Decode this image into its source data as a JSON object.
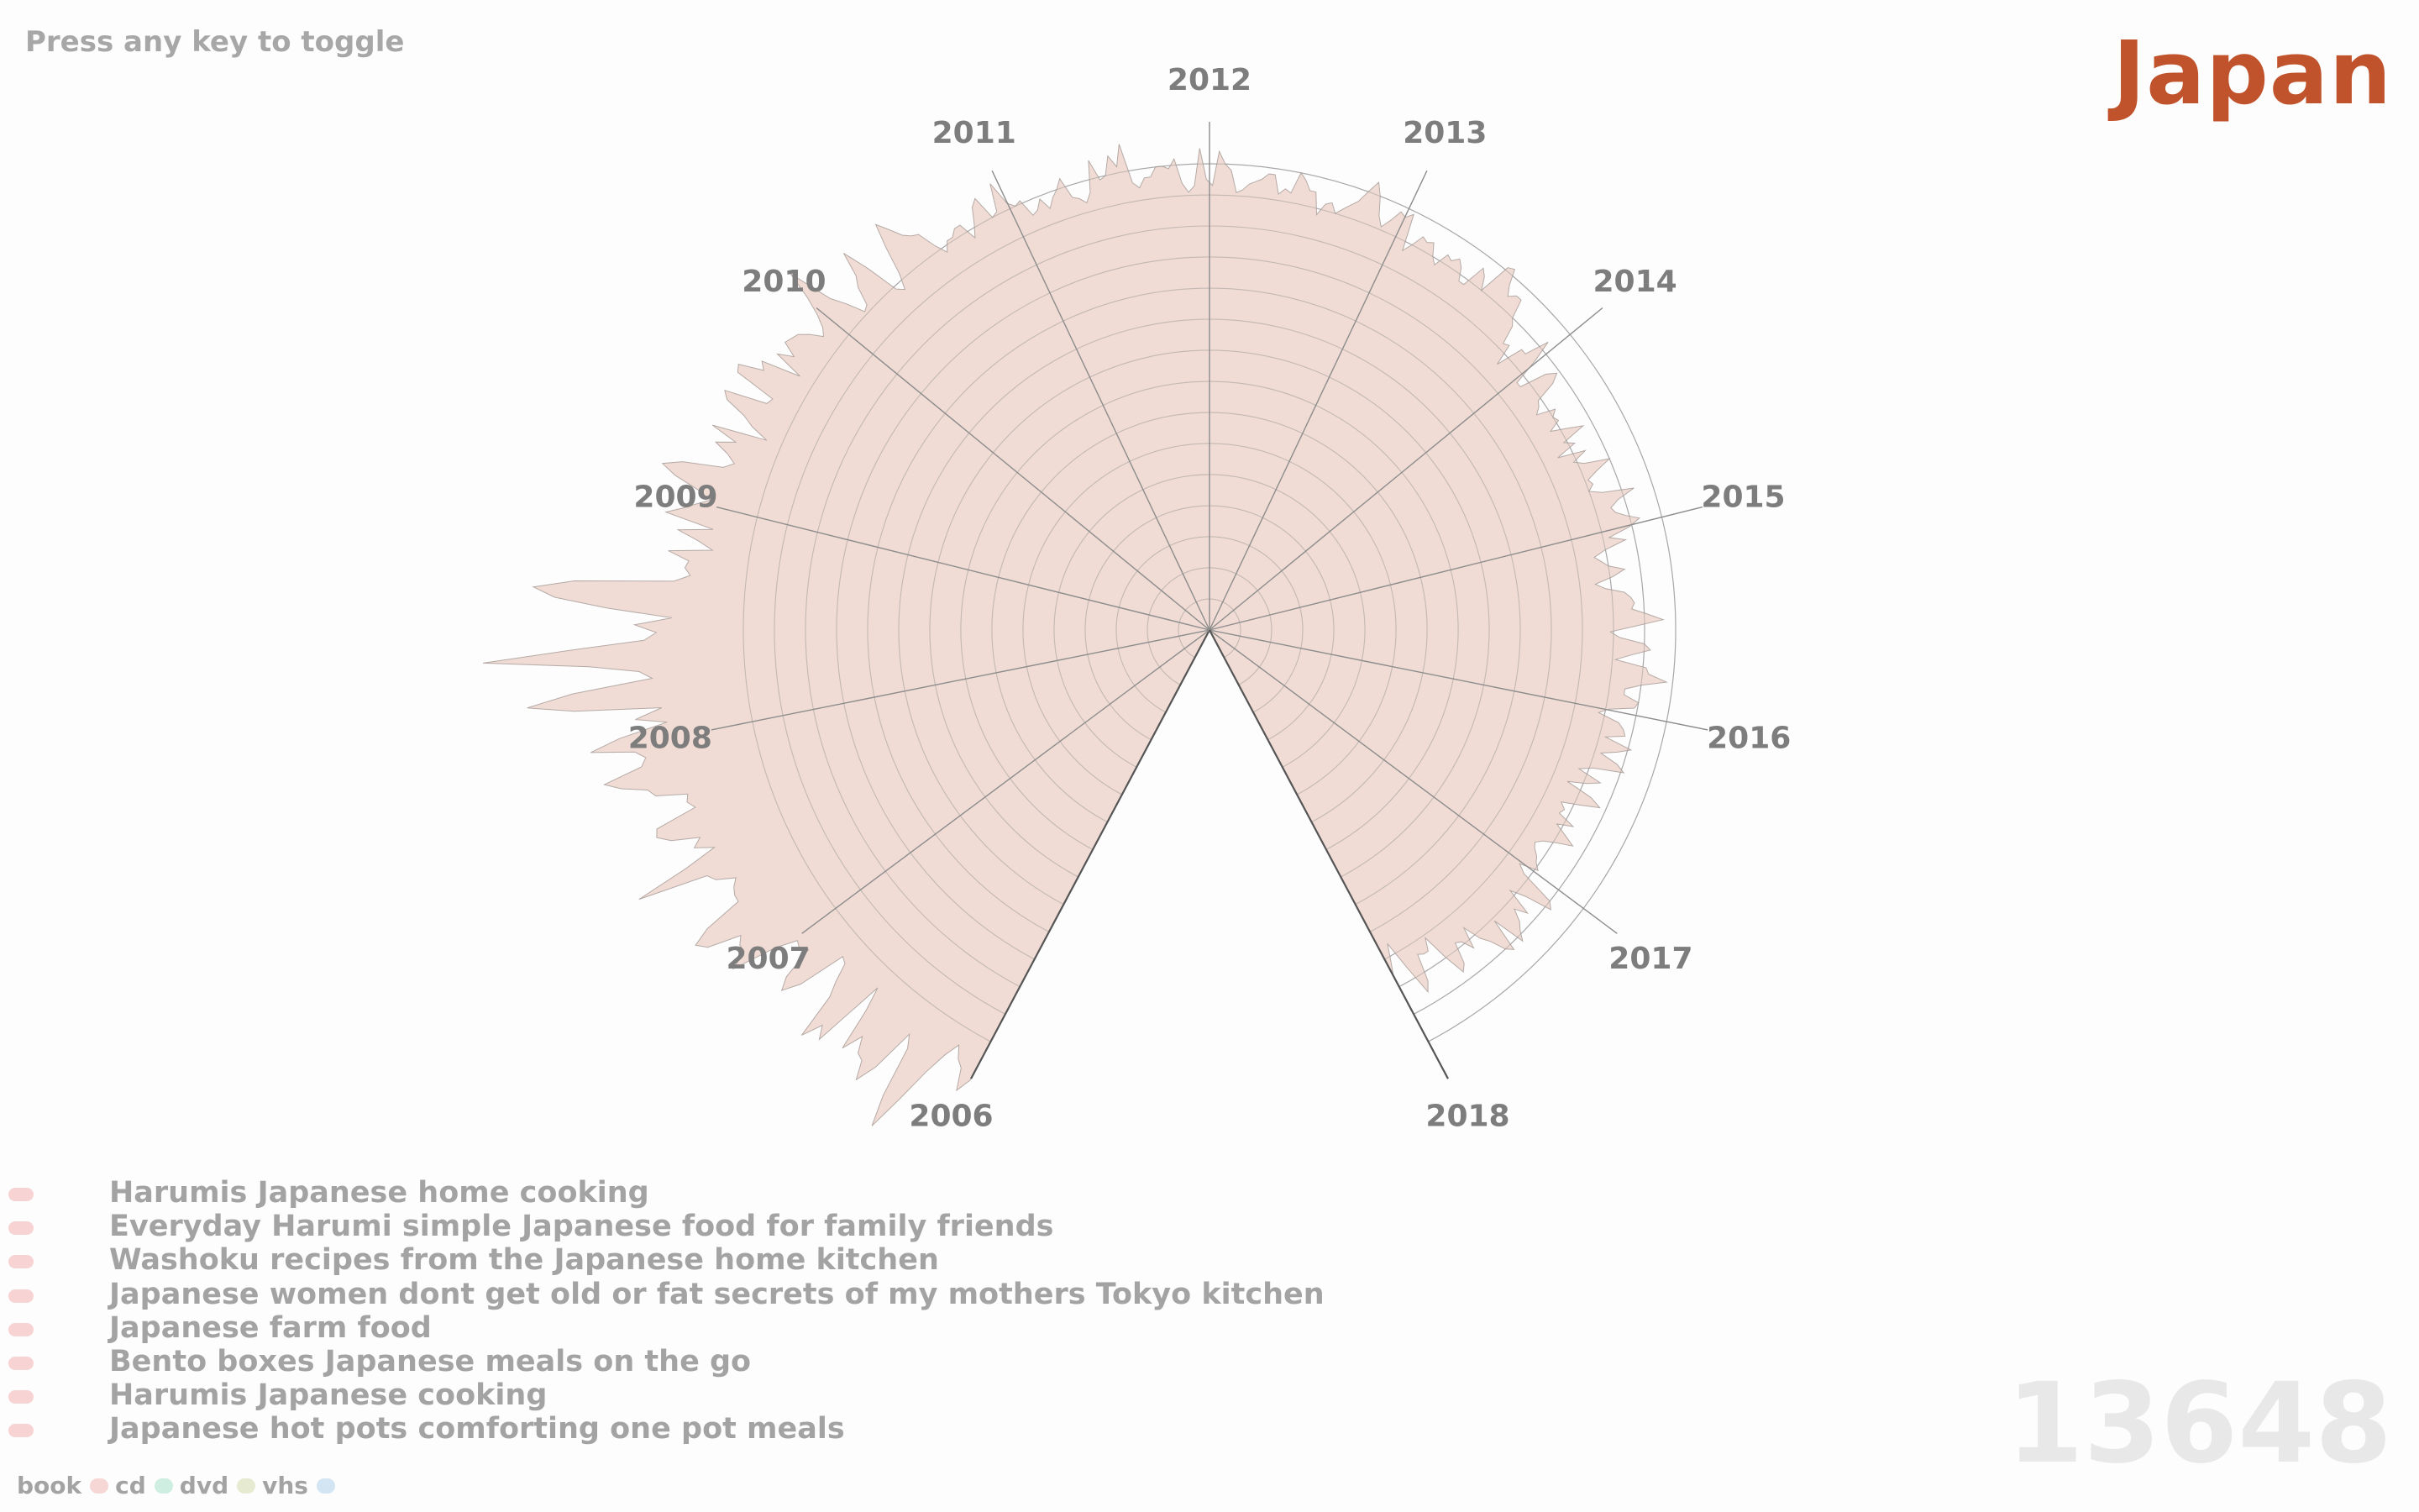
{
  "hint": "Press any key to toggle",
  "country": "Japan",
  "total": "13648",
  "legend": [
    {
      "label": "book",
      "color": "#f7d6d6"
    },
    {
      "label": "cd",
      "color": "#cfeee2"
    },
    {
      "label": "dvd",
      "color": "#e6ead1"
    },
    {
      "label": "vhs",
      "color": "#d3e4f2"
    }
  ],
  "titles": [
    "Harumis Japanese home cooking",
    "Everyday Harumi simple Japanese food for family friends",
    "Washoku recipes from the Japanese home kitchen",
    "Japanese women dont get old or fat secrets of my mothers Tokyo kitchen",
    "Japanese farm food",
    "Bento boxes Japanese meals on the go",
    "Harumis Japanese cooking",
    "Japanese hot pots comforting one pot meals"
  ],
  "colors": {
    "fill": "#f0dcd4",
    "grid": "#8c8c8c",
    "year_label": "#7d7d7d",
    "country": "#c0532c"
  },
  "chart_data": {
    "type": "area",
    "coordinates": "polar",
    "years": [
      "2006",
      "2007",
      "2008",
      "2009",
      "2010",
      "2011",
      "2012",
      "2013",
      "2014",
      "2015",
      "2016",
      "2017",
      "2018"
    ],
    "series": [
      {
        "values": [
          16.4,
          16.9,
          16.2,
          16.0,
          15.6,
          16.1,
          16.9,
          18.1,
          19.3,
          18.3,
          16.6,
          16.2,
          17.7,
          18.4,
          17.8,
          17.7,
          17.2,
          17.9,
          16.5,
          15.7,
          18.2,
          17.8,
          18.5,
          17.0,
          16.5,
          15.9,
          15.8,
          17.4,
          18.0,
          17.6,
          16.5,
          16.7,
          16.6,
          17.3,
          18.8,
          18.2,
          18.2,
          18.0,
          19.1,
          19.4,
          18.8,
          17.5,
          17.5,
          17.4,
          17.2,
          17.8,
          18.0,
          20.3,
          18.5,
          17.4,
          18.0,
          17.7,
          18.6,
          19.0,
          18.9,
          17.5,
          17.7,
          17.6,
          18.6,
          18.8,
          19.6,
          20.1,
          18.8,
          18.6,
          18.9,
          20.3,
          19.3,
          17.7,
          18.7,
          17.8,
          20.6,
          22.1,
          20.6,
          18.0,
          18.4,
          20.0,
          23.4,
          20.6,
          18.2,
          17.8,
          18.5,
          17.3,
          19.4,
          21.1,
          21.8,
          20.5,
          17.3,
          16.8,
          17.0,
          16.9,
          17.6,
          16.2,
          16.7,
          17.4,
          16.3,
          17.9,
          17.4,
          17.0,
          16.6,
          17.1,
          17.9,
          18.4,
          17.8,
          16.5,
          16.2,
          16.5,
          17.0,
          16.4,
          17.3,
          15.5,
          16.1,
          16.5,
          17.2,
          17.4,
          16.0,
          15.9,
          17.3,
          17.4,
          16.6,
          16.8,
          15.5,
          16.5,
          16.0,
          16.5,
          16.4,
          16.3,
          16.0,
          15.6,
          15.8,
          16.2,
          16.8,
          17.7,
          16.2,
          15.7,
          15.1,
          15.2,
          15.8,
          16.1,
          16.9,
          16.0,
          14.9,
          14.7,
          15.2,
          16.1,
          16.9,
          16.5,
          16.1,
          15.9,
          15.8,
          15.2,
          14.8,
          15.1,
          15.1,
          15.3,
          15.3,
          14.7,
          15.1,
          15.6,
          15.8,
          15.0,
          15.1,
          16.0,
          15.2,
          15.0,
          15.1,
          14.5,
          14.6,
          14.9,
          14.5,
          14.8,
          15.0,
          15.3,
          14.6,
          14.5,
          14.3,
          14.6,
          15.6,
          14.9,
          15.0,
          15.6,
          15.2,
          15.9,
          14.6,
          14.4,
          14.7,
          14.7,
          15.0,
          15.0,
          14.9,
          15.2,
          14.4,
          14.1,
          14.3,
          15.5,
          14.5,
          14.3,
          15.4,
          15.0,
          14.8,
          14.1,
          14.2,
          14.4,
          14.5,
          14.6,
          14.8,
          14.8,
          14.2,
          14.4,
          14.3,
          15.0,
          14.8,
          14.5,
          14.5,
          13.8,
          14.2,
          14.3,
          14.0,
          14.2,
          14.4,
          14.6,
          15.0,
          15.4,
          15.0,
          14.4,
          14.1,
          14.4,
          14.8,
          14.7,
          14.9,
          13.7,
          14.0,
          14.4,
          14.3,
          14.4,
          14.0,
          13.8,
          14.3,
          14.2,
          14.4,
          14.2,
          13.8,
          13.8,
          14.6,
          14.4,
          14.0,
          15.1,
          15.2,
          14.7,
          14.4,
          14.6,
          14.6,
          14.0,
          13.8,
          13.2,
          13.3,
          12.6,
          13.5,
          13.5,
          14.3,
          13.6,
          12.7,
          12.7,
          13.6,
          13.9,
          13.6,
          12.9,
          12.8,
          12.6,
          13.2,
          13.0,
          13.1,
          12.7,
          13.2,
          13.7,
          12.9,
          13.2,
          12.5,
          13.4,
          12.9,
          13.2,
          14.0,
          13.5,
          13.1,
          13.2,
          13.0,
          13.4,
          14.4,
          13.8,
          13.5,
          13.6,
          13.9,
          14.3,
          13.9,
          13.2,
          13.7,
          13.0,
          12.6,
          12.8,
          13.0,
          13.5,
          13.1,
          12.5,
          12.8,
          13.4,
          13.6,
          13.7,
          13.6,
          14.1,
          14.6,
          13.7,
          12.9,
          13.2,
          14.0,
          14.2,
          13.6,
          13.1,
          14.1,
          14.2,
          14.8,
          14.0,
          13.5,
          13.5,
          14.0,
          13.9,
          13.1,
          12.8,
          13.5,
          13.7,
          13.8,
          13.2,
          14.1,
          13.7,
          13.2,
          13.8,
          14.1,
          13.1,
          12.7,
          13.5,
          13.1,
          12.5,
          13.4,
          13.8,
          13.2,
          12.6,
          12.8,
          12.7,
          13.3,
          12.8,
          13.2,
          13.6,
          13.1,
          12.7,
          12.5,
          12.6,
          12.8,
          12.9,
          13.1,
          12.5,
          12.8,
          14.0,
          14.2,
          13.3,
          12.8,
          13.7,
          13.3,
          13.7,
          13.9,
          14.2,
          13.1,
          14.2,
          14.0,
          13.5,
          13.2,
          12.6,
          13.3,
          12.9,
          12.8,
          13.5,
          13.7,
          13.0,
          12.1,
          12.5,
          12.5,
          12.4,
          13.3,
          13.6,
          12.6,
          11.6,
          12.1,
          12.6
        ]
      }
    ]
  }
}
